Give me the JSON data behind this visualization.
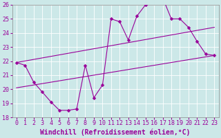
{
  "xlabel": "Windchill (Refroidissement éolien,°C)",
  "xlim": [
    -0.5,
    23.5
  ],
  "ylim": [
    18,
    26
  ],
  "yticks": [
    18,
    19,
    20,
    21,
    22,
    23,
    24,
    25,
    26
  ],
  "xticks": [
    0,
    1,
    2,
    3,
    4,
    5,
    6,
    7,
    8,
    9,
    10,
    11,
    12,
    13,
    14,
    15,
    16,
    17,
    18,
    19,
    20,
    21,
    22,
    23
  ],
  "bg_color": "#cce8e8",
  "line_color": "#990099",
  "grid_color": "#aacccc",
  "main_x": [
    0,
    1,
    2,
    3,
    4,
    5,
    6,
    7,
    8,
    9,
    10,
    11,
    12,
    13,
    14,
    15,
    16,
    17,
    18,
    19,
    20,
    21,
    22,
    23
  ],
  "main_y": [
    21.9,
    21.7,
    20.5,
    19.8,
    19.1,
    18.5,
    18.5,
    18.6,
    21.7,
    19.4,
    20.3,
    25.0,
    24.8,
    23.5,
    25.2,
    26.0,
    26.3,
    26.5,
    25.0,
    25.0,
    24.4,
    23.4,
    22.5,
    22.4
  ],
  "upper_line_x": [
    0,
    23
  ],
  "upper_line_y": [
    21.9,
    24.4
  ],
  "lower_line_x": [
    0,
    23
  ],
  "lower_line_y": [
    20.1,
    22.4
  ],
  "font_color": "#990099",
  "font_size": 6,
  "marker": "D",
  "marker_size": 2.5
}
